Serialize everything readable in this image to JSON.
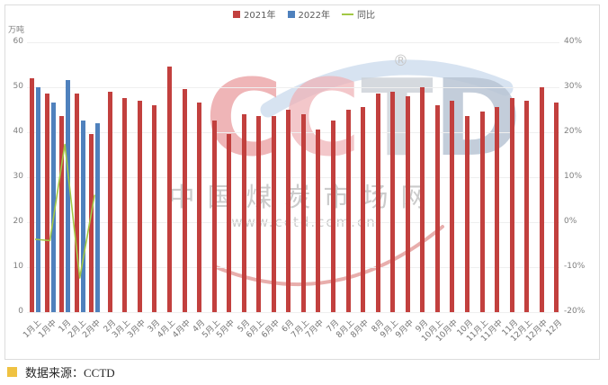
{
  "colors": {
    "bar_2021": "#C2403E",
    "bar_2022": "#4F81BD",
    "line_yoy": "#A2C845",
    "grid": "#EFEFEF",
    "axis_text": "#7F7F7F",
    "source_bullet": "#EFC242"
  },
  "legend": [
    {
      "label": "2021年",
      "marker": "square",
      "color_key": "bar_2021"
    },
    {
      "label": "2022年",
      "marker": "square",
      "color_key": "bar_2022"
    },
    {
      "label": "同比",
      "marker": "line",
      "color_key": "line_yoy"
    }
  ],
  "axes": {
    "left": {
      "title": "万吨",
      "ticks": [
        "60",
        "50",
        "40",
        "30",
        "20",
        "10",
        "0"
      ]
    },
    "right": {
      "ticks": [
        "40%",
        "30%",
        "20%",
        "10%",
        "0%",
        "-10%",
        "-20%"
      ]
    }
  },
  "watermark": {
    "logo_text": "CCTD",
    "registered_mark": "®",
    "site_name": "中国煤炭市场网",
    "site_url": "www.cctd.com.cn"
  },
  "source": {
    "label": "数据来源：CCTD"
  },
  "chart_data": {
    "type": "bar",
    "title": "",
    "categories": [
      "1月上",
      "1月中",
      "1月",
      "2月上",
      "2月中",
      "2月",
      "3月上",
      "3月中",
      "3月",
      "4月上",
      "4月中",
      "4月",
      "5月上",
      "5月中",
      "5月",
      "6月上",
      "6月中",
      "6月",
      "7月上",
      "7月中",
      "7月",
      "8月上",
      "8月中",
      "8月",
      "9月上",
      "9月中",
      "9月",
      "10月上",
      "10月中",
      "10月",
      "11月上",
      "11月中",
      "11月",
      "12月上",
      "12月中",
      "12月"
    ],
    "series": [
      {
        "name": "2021年",
        "type": "bar",
        "axis": "left",
        "values": [
          52,
          48.5,
          43.5,
          48.5,
          39.5,
          49,
          47.5,
          47,
          46,
          54.5,
          49.5,
          46.5,
          42.5,
          39.5,
          44,
          43.5,
          43.5,
          45,
          44,
          40.5,
          42.5,
          45,
          45.5,
          48.5,
          49,
          48,
          50,
          46,
          47,
          43.5,
          44.5,
          45.5,
          47.5,
          47,
          50,
          46.5
        ]
      },
      {
        "name": "2022年",
        "type": "bar",
        "axis": "left",
        "values": [
          50,
          46.5,
          51.5,
          42.5,
          42
        ]
      },
      {
        "name": "同比",
        "type": "line",
        "axis": "right",
        "unit": "%",
        "values": [
          -3.8,
          -4.1,
          17.3,
          -12.4,
          6.1
        ]
      }
    ],
    "left_axis": {
      "label": "万吨",
      "min": 0,
      "max": 60,
      "step": 10
    },
    "right_axis": {
      "label": "",
      "min": -20,
      "max": 40,
      "step": 10,
      "format": "percent"
    },
    "legend_position": "top-center",
    "grid": "horizontal"
  }
}
